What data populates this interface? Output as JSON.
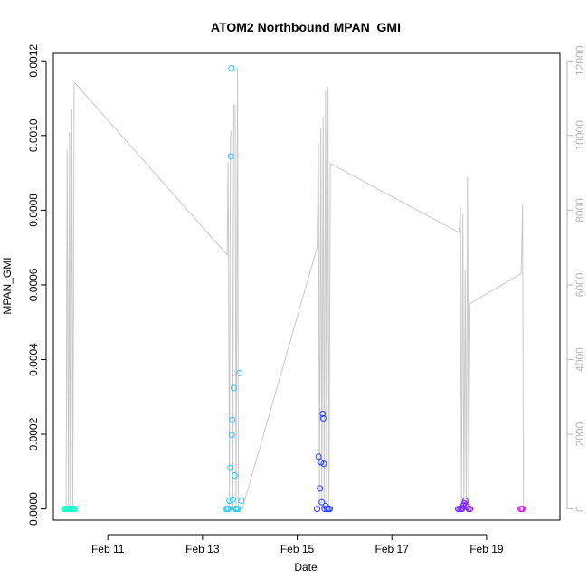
{
  "chart_data": {
    "type": "scatter",
    "title": "ATOM2 Northbound MPAN_GMI",
    "xlabel": "Date",
    "ylabel": "MPAN_GMI",
    "y2label": "",
    "x_range_days": [
      9.85,
      20.55
    ],
    "ylim": [
      -3e-05,
      0.00122
    ],
    "y2lim": [
      -300,
      12200
    ],
    "x_ticks": [
      {
        "day": 11,
        "label": "Feb 11"
      },
      {
        "day": 13,
        "label": "Feb 13"
      },
      {
        "day": 15,
        "label": "Feb 15"
      },
      {
        "day": 17,
        "label": "Feb 17"
      },
      {
        "day": 19,
        "label": "Feb 19"
      }
    ],
    "y_ticks": [
      {
        "value": 0.0,
        "label": "0.0000"
      },
      {
        "value": 0.0002,
        "label": "0.0002"
      },
      {
        "value": 0.0004,
        "label": "0.0004"
      },
      {
        "value": 0.0006,
        "label": "0.0006"
      },
      {
        "value": 0.0008,
        "label": "0.0008"
      },
      {
        "value": 0.001,
        "label": "0.0010"
      },
      {
        "value": 0.0012,
        "label": "0.0012"
      }
    ],
    "y2_ticks": [
      {
        "value": 0,
        "label": "0"
      },
      {
        "value": 2000,
        "label": "2000"
      },
      {
        "value": 4000,
        "label": "4000"
      },
      {
        "value": 6000,
        "label": "6000"
      },
      {
        "value": 8000,
        "label": "8000"
      },
      {
        "value": 10000,
        "label": "10000"
      },
      {
        "value": 12000,
        "label": "12000"
      }
    ],
    "secondary_trace": {
      "color": "#c8c8c8",
      "x": [
        10.12,
        10.14,
        10.17,
        10.19,
        10.21,
        10.24,
        10.26,
        10.29,
        10.31,
        13.52,
        13.54,
        13.57,
        13.59,
        13.62,
        13.64,
        13.66,
        13.69,
        13.71,
        13.74,
        13.76,
        13.79,
        13.81,
        13.84,
        15.42,
        15.45,
        15.47,
        15.5,
        15.52,
        15.55,
        15.57,
        15.6,
        15.62,
        15.65,
        15.67,
        15.7,
        18.42,
        18.45,
        18.47,
        18.5,
        18.52,
        18.55,
        18.57,
        18.6,
        18.62,
        18.65,
        19.73,
        19.76,
        19.78
      ],
      "y": [
        0,
        9600,
        0,
        10100,
        0,
        10700,
        0,
        11400,
        11400,
        6800,
        9300,
        0,
        10000,
        10150,
        0,
        10800,
        10800,
        0,
        11800,
        0,
        0,
        0,
        0,
        7000,
        9800,
        0,
        10200,
        0,
        10500,
        0,
        11200,
        0,
        11300,
        0,
        9250,
        7400,
        8100,
        0,
        7900,
        0,
        6400,
        0,
        8900,
        0,
        5500,
        6300,
        8150,
        0
      ]
    },
    "series": [
      {
        "color": "#1affc8",
        "x": [
          10.08,
          10.1,
          10.12,
          10.14,
          10.16,
          10.18,
          10.2,
          10.22,
          10.24,
          10.26,
          10.28,
          10.3
        ],
        "y": [
          0,
          0,
          0,
          0,
          0,
          0,
          0,
          0,
          0,
          0,
          0,
          0
        ]
      },
      {
        "color": "#20c8ff",
        "x": [
          13.5,
          13.53,
          13.55,
          13.57,
          13.59,
          13.6,
          13.61,
          13.62,
          13.63,
          13.64,
          13.66,
          13.68,
          13.7,
          13.72,
          13.75,
          13.78,
          13.82
        ],
        "y": [
          0.0,
          0.0,
          0.0,
          2.2e-05,
          0.00011,
          0.000944,
          0.00118,
          0.000198,
          0.000238,
          2.5e-05,
          0.000324,
          9e-05,
          0.0,
          0.0,
          0.0,
          0.000364,
          2.2e-05
        ]
      },
      {
        "color": "#1e3cff",
        "x": [
          15.42,
          15.45,
          15.48,
          15.5,
          15.52,
          15.54,
          15.55,
          15.56,
          15.58,
          15.6,
          15.63,
          15.66,
          15.69
        ],
        "y": [
          0,
          0.00014,
          5.5e-05,
          0.000125,
          1.8e-05,
          0.000255,
          0.000243,
          0.000121,
          0,
          8e-06,
          0,
          0,
          0
        ]
      },
      {
        "color": "#7a1eff",
        "x": [
          18.4,
          18.43,
          18.46,
          18.48,
          18.51,
          18.53,
          18.55,
          18.57,
          18.59,
          18.62,
          18.65
        ],
        "y": [
          0,
          0,
          0,
          0,
          8e-06,
          1.5e-05,
          2.2e-05,
          1.2e-05,
          5e-06,
          0,
          0
        ]
      },
      {
        "color": "#e21aff",
        "x": [
          19.72,
          19.74,
          19.76
        ],
        "y": [
          0,
          0,
          0
        ]
      }
    ]
  }
}
